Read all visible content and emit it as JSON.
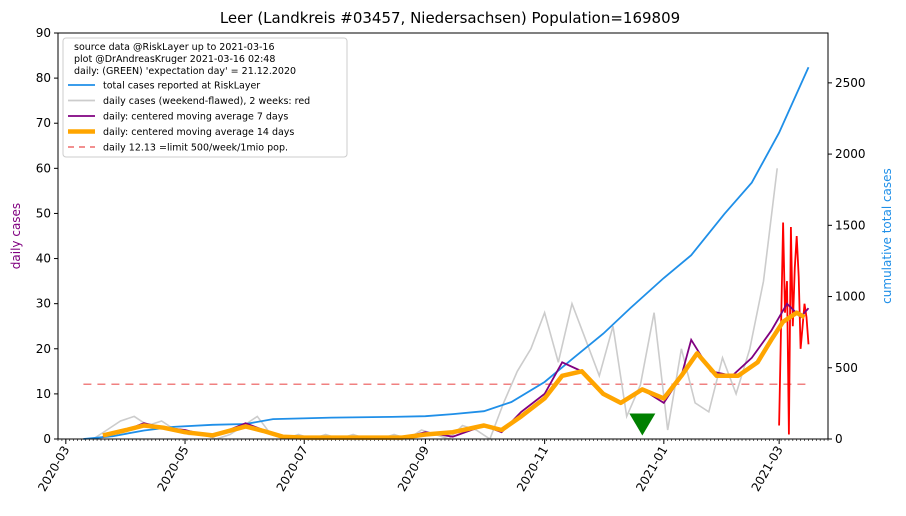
{
  "chart_data": {
    "type": "line",
    "title": "Leer (Landkreis #03457, Niedersachsen) Population=169809",
    "ylabel_left": "daily cases",
    "ylabel_right": "cumulative total cases",
    "ylim_left": [
      0,
      90
    ],
    "ylim_right": [
      0,
      2850
    ],
    "yticks_left": [
      "0",
      "10",
      "20",
      "30",
      "40",
      "50",
      "60",
      "70",
      "80",
      "90"
    ],
    "yticks_right": [
      "0",
      "500",
      "1000",
      "1500",
      "2000",
      "2500"
    ],
    "xticks": [
      "2020-03",
      "2020-05",
      "2020-07",
      "2020-09",
      "2020-11",
      "2021-01",
      "2021-03"
    ],
    "xlim": [
      "2020-02-26",
      "2021-03-26"
    ],
    "legend": {
      "placement": "top-left",
      "notes": [
        "source data @RiskLayer up to 2021-03-16",
        "plot @DrAndreasKruger 2021-03-16 02:48",
        "daily: (GREEN) 'expectation day' = 21.12.2020"
      ],
      "entries": [
        "total cases reported at RiskLayer",
        "daily cases (weekend-flawed), 2 weeks: red",
        "daily: centered moving average 7 days",
        "daily: centered moving average 14 days",
        "daily 12.13 =limit 500/week/1mio pop."
      ]
    },
    "colors": {
      "total": "#1f8fe8",
      "daily": "#cccccc",
      "recent": "#ff0000",
      "ma7": "#800080",
      "ma14": "#ffa500",
      "limit": "#f08080",
      "marker": "#008000",
      "left_label": "#800080",
      "right_label": "#1f8fe8"
    },
    "limit_line": {
      "value": 12.13,
      "x_start": "2020-03-10",
      "x_end": "2021-03-16"
    },
    "expectation_marker": {
      "x": "2020-12-21",
      "y": 3
    },
    "series_total": {
      "x": [
        "2020-03-10",
        "2020-03-25",
        "2020-04-10",
        "2020-04-25",
        "2020-05-15",
        "2020-06-01",
        "2020-06-15",
        "2020-07-15",
        "2020-08-15",
        "2020-09-01",
        "2020-09-15",
        "2020-10-01",
        "2020-10-15",
        "2020-11-01",
        "2020-11-15",
        "2020-12-01",
        "2020-12-15",
        "2021-01-01",
        "2021-01-15",
        "2021-02-01",
        "2021-02-15",
        "2021-03-01",
        "2021-03-16"
      ],
      "y": [
        0,
        20,
        60,
        85,
        100,
        105,
        140,
        150,
        155,
        160,
        175,
        195,
        260,
        400,
        560,
        740,
        920,
        1130,
        1290,
        1580,
        1800,
        2150,
        2610
      ]
    },
    "series_daily": {
      "x": [
        "2020-03-15",
        "2020-03-22",
        "2020-03-29",
        "2020-04-05",
        "2020-04-12",
        "2020-04-19",
        "2020-04-26",
        "2020-05-03",
        "2020-05-10",
        "2020-05-17",
        "2020-05-24",
        "2020-05-31",
        "2020-06-07",
        "2020-06-14",
        "2020-06-21",
        "2020-06-28",
        "2020-07-05",
        "2020-07-12",
        "2020-07-19",
        "2020-07-26",
        "2020-08-02",
        "2020-08-09",
        "2020-08-16",
        "2020-08-23",
        "2020-08-30",
        "2020-09-06",
        "2020-09-13",
        "2020-09-20",
        "2020-09-27",
        "2020-10-04",
        "2020-10-11",
        "2020-10-18",
        "2020-10-25",
        "2020-11-01",
        "2020-11-08",
        "2020-11-15",
        "2020-11-22",
        "2020-11-29",
        "2020-12-06",
        "2020-12-13",
        "2020-12-20",
        "2020-12-27",
        "2021-01-03",
        "2021-01-10",
        "2021-01-17",
        "2021-01-24",
        "2021-01-31",
        "2021-02-07",
        "2021-02-14",
        "2021-02-21",
        "2021-02-28"
      ],
      "y": [
        0,
        2,
        4,
        5,
        3,
        4,
        2,
        1,
        1,
        0,
        1,
        3,
        5,
        1,
        0,
        1,
        0,
        1,
        0,
        1,
        0,
        0,
        1,
        0,
        2,
        1,
        0,
        3,
        2,
        0,
        8,
        15,
        20,
        28,
        17,
        30,
        22,
        14,
        25,
        5,
        12,
        28,
        2,
        20,
        8,
        6,
        18,
        10,
        20,
        35,
        60
      ]
    },
    "series_recent": {
      "x": [
        "2021-03-01",
        "2021-03-03",
        "2021-03-04",
        "2021-03-05",
        "2021-03-06",
        "2021-03-07",
        "2021-03-08",
        "2021-03-09",
        "2021-03-10",
        "2021-03-11",
        "2021-03-12",
        "2021-03-13",
        "2021-03-14",
        "2021-03-15",
        "2021-03-16"
      ],
      "y": [
        3,
        48,
        28,
        35,
        1,
        47,
        25,
        38,
        45,
        36,
        20,
        25,
        30,
        27,
        21
      ]
    },
    "series_ma7": {
      "x": [
        "2020-03-20",
        "2020-04-01",
        "2020-04-10",
        "2020-04-20",
        "2020-05-01",
        "2020-05-15",
        "2020-06-01",
        "2020-06-10",
        "2020-06-20",
        "2020-07-01",
        "2020-08-01",
        "2020-08-20",
        "2020-09-01",
        "2020-09-15",
        "2020-10-01",
        "2020-10-10",
        "2020-10-20",
        "2020-11-01",
        "2020-11-10",
        "2020-11-20",
        "2020-12-01",
        "2020-12-10",
        "2020-12-21",
        "2021-01-01",
        "2021-01-10",
        "2021-01-15",
        "2021-01-25",
        "2021-02-05",
        "2021-02-15",
        "2021-02-25",
        "2021-03-05",
        "2021-03-12",
        "2021-03-16"
      ],
      "y": [
        0.5,
        2,
        3.5,
        2.5,
        2,
        0.5,
        3.5,
        2,
        0.5,
        0.3,
        0.2,
        0.2,
        1.5,
        0.5,
        3,
        1.5,
        6,
        10,
        17,
        15,
        10,
        8,
        11,
        8,
        14,
        22,
        15,
        14,
        18,
        24,
        30,
        27,
        29
      ]
    },
    "series_ma14": {
      "x": [
        "2020-03-20",
        "2020-04-01",
        "2020-04-10",
        "2020-04-20",
        "2020-05-01",
        "2020-05-15",
        "2020-06-01",
        "2020-06-10",
        "2020-06-20",
        "2020-07-01",
        "2020-08-01",
        "2020-08-20",
        "2020-09-01",
        "2020-09-15",
        "2020-10-01",
        "2020-10-10",
        "2020-10-20",
        "2020-11-01",
        "2020-11-10",
        "2020-11-20",
        "2020-12-01",
        "2020-12-10",
        "2020-12-21",
        "2021-01-01",
        "2021-01-10",
        "2021-01-18",
        "2021-01-28",
        "2021-02-08",
        "2021-02-18",
        "2021-02-25",
        "2021-03-03",
        "2021-03-10",
        "2021-03-14"
      ],
      "y": [
        0.8,
        2,
        3,
        2.5,
        1.5,
        0.8,
        2.8,
        1.8,
        0.5,
        0.3,
        0.3,
        0.3,
        1,
        1.5,
        3,
        2,
        5,
        9,
        14,
        15,
        10,
        8,
        11,
        9,
        14,
        19,
        14,
        14,
        17,
        22,
        26,
        28,
        27
      ]
    }
  }
}
